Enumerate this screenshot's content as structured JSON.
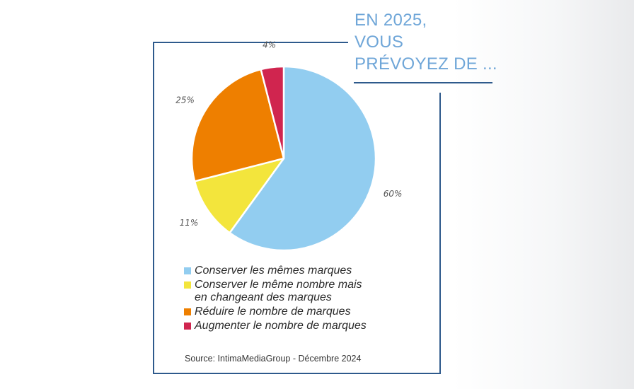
{
  "title": {
    "line1": "EN 2025,",
    "line2": "VOUS",
    "line3": "PRÉVOYEZ DE ..."
  },
  "chart_data": {
    "type": "pie",
    "series": [
      {
        "label": "Conserver les mêmes marques",
        "value": 60,
        "value_label": "60%",
        "color": "#92cdf0"
      },
      {
        "label": "Conserver le même nombre mais en changeant des marques",
        "label_line1": "Conserver le même nombre mais",
        "label_line2": "en changeant des marques",
        "value": 11,
        "value_label": "11%",
        "color": "#f3e53c"
      },
      {
        "label": "Réduire le nombre de marques",
        "value": 25,
        "value_label": "25%",
        "color": "#ee7f00"
      },
      {
        "label": "Augmenter le nombre de marques",
        "value": 4,
        "value_label": "4%",
        "color": "#d0254f"
      }
    ]
  },
  "source": "Source: IntimaMediaGroup - Décembre 2024"
}
